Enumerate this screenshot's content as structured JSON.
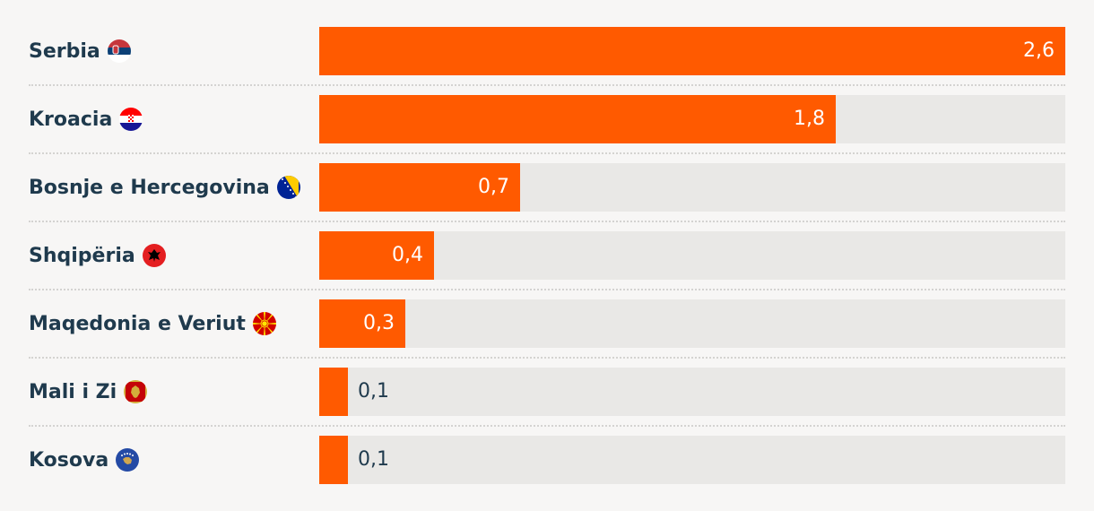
{
  "chart_data": {
    "type": "bar",
    "orientation": "horizontal",
    "categories": [
      "Serbia",
      "Kroacia",
      "Bosnje e Hercegovina",
      "Shqipëria",
      "Maqedonia e Veriut",
      "Mali i Zi",
      "Kosova"
    ],
    "values": [
      2.6,
      1.8,
      0.7,
      0.4,
      0.3,
      0.1,
      0.1
    ],
    "value_labels": [
      "2,6",
      "1,8",
      "0,7",
      "0,4",
      "0,3",
      "0,1",
      "0,1"
    ],
    "flags": [
      "serbia-flag-icon",
      "croatia-flag-icon",
      "bosnia-flag-icon",
      "albania-flag-icon",
      "north-macedonia-flag-icon",
      "montenegro-flag-icon",
      "kosovo-flag-icon"
    ],
    "xlim": [
      0,
      2.6
    ],
    "grid": false,
    "colors": {
      "bar": "#ff5a00",
      "track": "#e9e8e6",
      "label": "#1f3a4d",
      "background": "#f7f6f5"
    }
  }
}
